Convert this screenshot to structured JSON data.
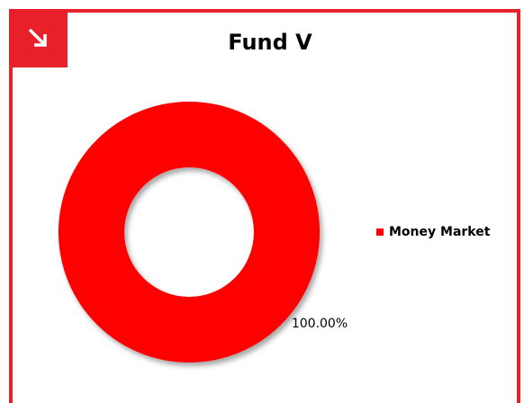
{
  "chart_data": {
    "type": "donut",
    "title": "Fund V",
    "categories": [
      "Money Market"
    ],
    "values": [
      100
    ],
    "value_labels": [
      "100.00%"
    ],
    "colors": [
      "#ff0000"
    ],
    "legend": "right"
  }
}
